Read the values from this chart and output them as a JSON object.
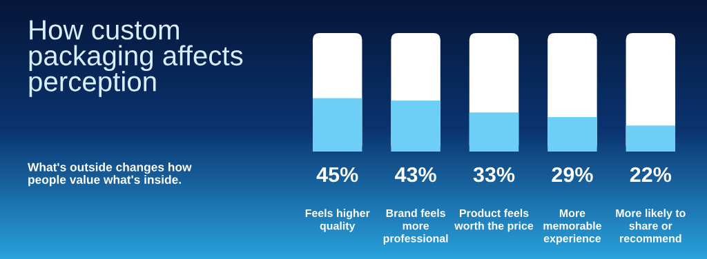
{
  "chart_data": {
    "type": "bar",
    "title": "How custom\npackaging affects\nperception",
    "subtitle": "What's outside changes how\npeople value what's inside.",
    "categories": [
      "Feels higher\nquality",
      "Brand feels\nmore\nprofessional",
      "Product feels\nworth the price",
      "More\nmemorable\nexperience",
      "More likely to\nshare or\nrecommend"
    ],
    "values": [
      45,
      43,
      33,
      29,
      22
    ],
    "value_labels": [
      "45%",
      "43%",
      "33%",
      "29%",
      "22%"
    ],
    "color": "#6dcff6",
    "ylim": [
      0,
      100
    ],
    "tick_labels": "x",
    "grid": false,
    "legend": false
  }
}
